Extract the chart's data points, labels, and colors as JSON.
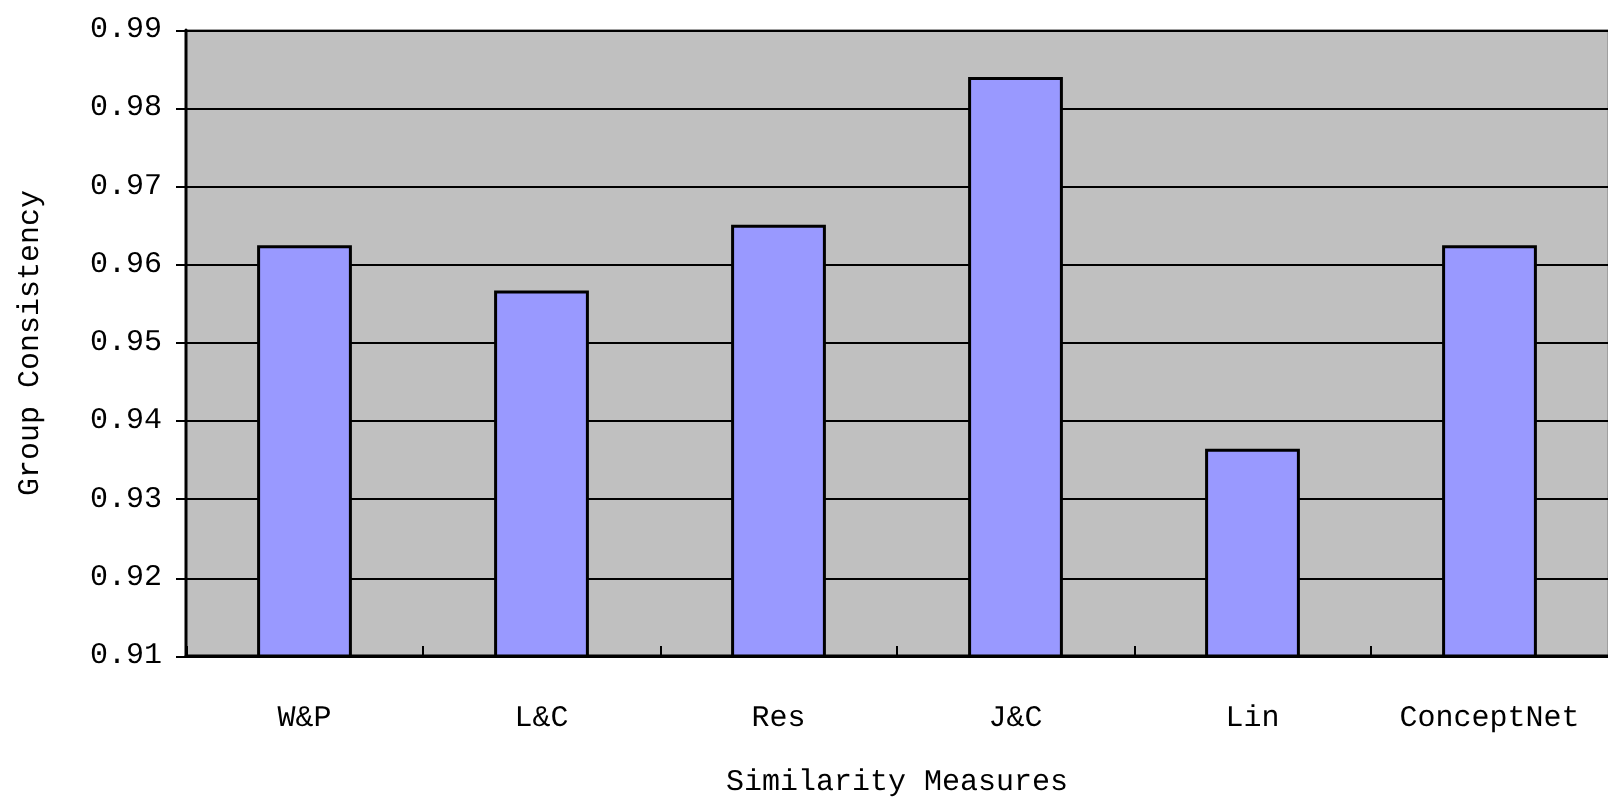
{
  "chart_data": {
    "type": "bar",
    "xlabel": "Similarity Measures",
    "ylabel": "Group Consistency",
    "categories": [
      "W&P",
      "L&C",
      "Res",
      "J&C",
      "Lin",
      "ConceptNet"
    ],
    "values": [
      0.9625,
      0.9567,
      0.9651,
      0.984,
      0.9365,
      0.9625
    ],
    "color": "#9999ff",
    "ylim": [
      0.91,
      0.99
    ],
    "yticks": [
      0.91,
      0.92,
      0.93,
      0.94,
      0.95,
      0.96,
      0.97,
      0.98,
      0.99
    ],
    "grid": "y"
  }
}
